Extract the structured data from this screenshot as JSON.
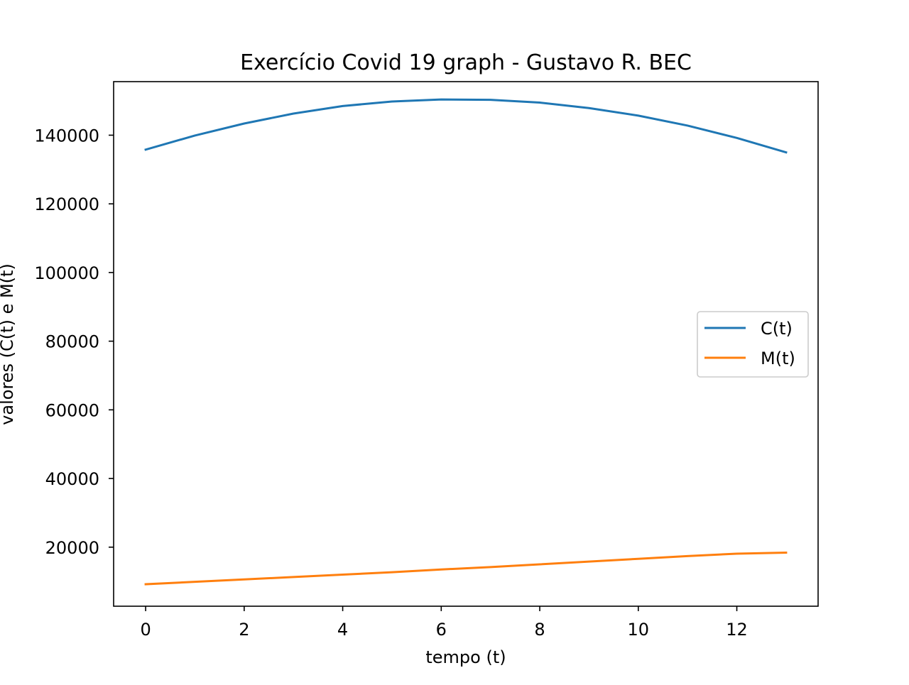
{
  "chart_data": {
    "type": "line",
    "title": "Exercício Covid 19 graph - Gustavo R. BEC",
    "xlabel": "tempo (t)",
    "ylabel": "valores (C(t) e M(t)",
    "x": [
      0,
      1,
      2,
      3,
      4,
      5,
      6,
      7,
      8,
      9,
      10,
      11,
      12,
      13
    ],
    "xlim": [
      -0.65,
      13.65
    ],
    "ylim": [
      2800,
      155600
    ],
    "xticks": [
      0,
      2,
      4,
      6,
      8,
      10,
      12
    ],
    "xtick_labels": [
      "0",
      "2",
      "4",
      "6",
      "8",
      "10",
      "12"
    ],
    "yticks": [
      20000,
      40000,
      60000,
      80000,
      100000,
      120000,
      140000
    ],
    "ytick_labels": [
      "20000",
      "40000",
      "60000",
      "80000",
      "100000",
      "120000",
      "140000"
    ],
    "grid": false,
    "legend_position": "center-right",
    "series": [
      {
        "name": "C(t)",
        "color": "#1f77b4",
        "values": [
          135800,
          139900,
          143400,
          146300,
          148500,
          149800,
          150400,
          150300,
          149500,
          147900,
          145700,
          142800,
          139200,
          135000
        ]
      },
      {
        "name": "M(t)",
        "color": "#ff7f0e",
        "values": [
          9200,
          9900,
          10600,
          11300,
          12000,
          12700,
          13500,
          14200,
          15000,
          15800,
          16600,
          17400,
          18100,
          18400
        ]
      }
    ]
  }
}
